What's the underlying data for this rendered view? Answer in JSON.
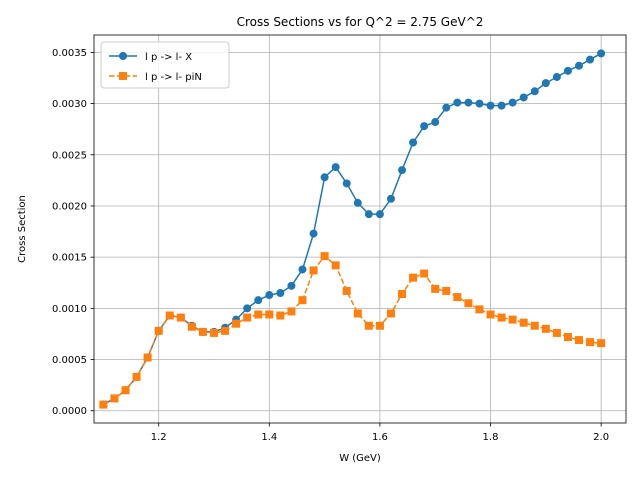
{
  "chart_data": {
    "type": "line",
    "title": "Cross Sections vs  for Q^2 = 2.75 GeV^2",
    "xlabel": "W (GeV)",
    "ylabel": "Cross Section",
    "xlim": [
      1.083,
      2.045
    ],
    "ylim": [
      -0.00012,
      0.00367
    ],
    "x_ticks": [
      1.2,
      1.4,
      1.6,
      1.8,
      2.0
    ],
    "x_tick_labels": [
      "1.2",
      "1.4",
      "1.6",
      "1.8",
      "2.0"
    ],
    "y_ticks": [
      0,
      0.0005,
      0.001,
      0.0015,
      0.002,
      0.0025,
      0.003,
      0.0035
    ],
    "y_tick_labels": [
      "0.0000",
      "0.0005",
      "0.0010",
      "0.0015",
      "0.0020",
      "0.0025",
      "0.0030",
      "0.0035"
    ],
    "grid": true,
    "legend_position": "top-left",
    "x": [
      1.1,
      1.12,
      1.14,
      1.16,
      1.18,
      1.2,
      1.22,
      1.24,
      1.26,
      1.28,
      1.3,
      1.32,
      1.34,
      1.36,
      1.38,
      1.4,
      1.42,
      1.44,
      1.46,
      1.48,
      1.5,
      1.52,
      1.54,
      1.56,
      1.58,
      1.6,
      1.62,
      1.64,
      1.66,
      1.68,
      1.7,
      1.72,
      1.74,
      1.76,
      1.78,
      1.8,
      1.82,
      1.84,
      1.86,
      1.88,
      1.9,
      1.92,
      1.94,
      1.96,
      1.98,
      2.0
    ],
    "series": [
      {
        "name": "l p -> l- X",
        "color": "#1f77b4",
        "marker": "circle",
        "linestyle": "solid",
        "values": [
          6e-05,
          0.00012,
          0.0002,
          0.00033,
          0.00052,
          0.00078,
          0.00093,
          0.00091,
          0.00083,
          0.00077,
          0.00077,
          0.00081,
          0.00089,
          0.001,
          0.00108,
          0.00113,
          0.00115,
          0.00122,
          0.00138,
          0.00173,
          0.00228,
          0.00238,
          0.00222,
          0.00203,
          0.00192,
          0.00192,
          0.00207,
          0.00235,
          0.00262,
          0.00278,
          0.00282,
          0.00296,
          0.00301,
          0.00301,
          0.003,
          0.00298,
          0.00298,
          0.00301,
          0.00306,
          0.00312,
          0.0032,
          0.00326,
          0.00332,
          0.00337,
          0.00343,
          0.00349
        ]
      },
      {
        "name": "l p -> l- piN",
        "color": "#ff7f0e",
        "marker": "square",
        "linestyle": "dashed",
        "values": [
          6e-05,
          0.00012,
          0.0002,
          0.00033,
          0.00052,
          0.00078,
          0.00093,
          0.00091,
          0.00082,
          0.00077,
          0.00076,
          0.00078,
          0.00085,
          0.00091,
          0.00094,
          0.00094,
          0.00093,
          0.00097,
          0.00108,
          0.00137,
          0.00151,
          0.00142,
          0.00117,
          0.00095,
          0.00083,
          0.00083,
          0.00095,
          0.00114,
          0.0013,
          0.00134,
          0.00119,
          0.00117,
          0.00111,
          0.00105,
          0.00099,
          0.00094,
          0.00091,
          0.00089,
          0.00086,
          0.00083,
          0.0008,
          0.00076,
          0.00072,
          0.00069,
          0.00067,
          0.00066
        ]
      }
    ]
  }
}
